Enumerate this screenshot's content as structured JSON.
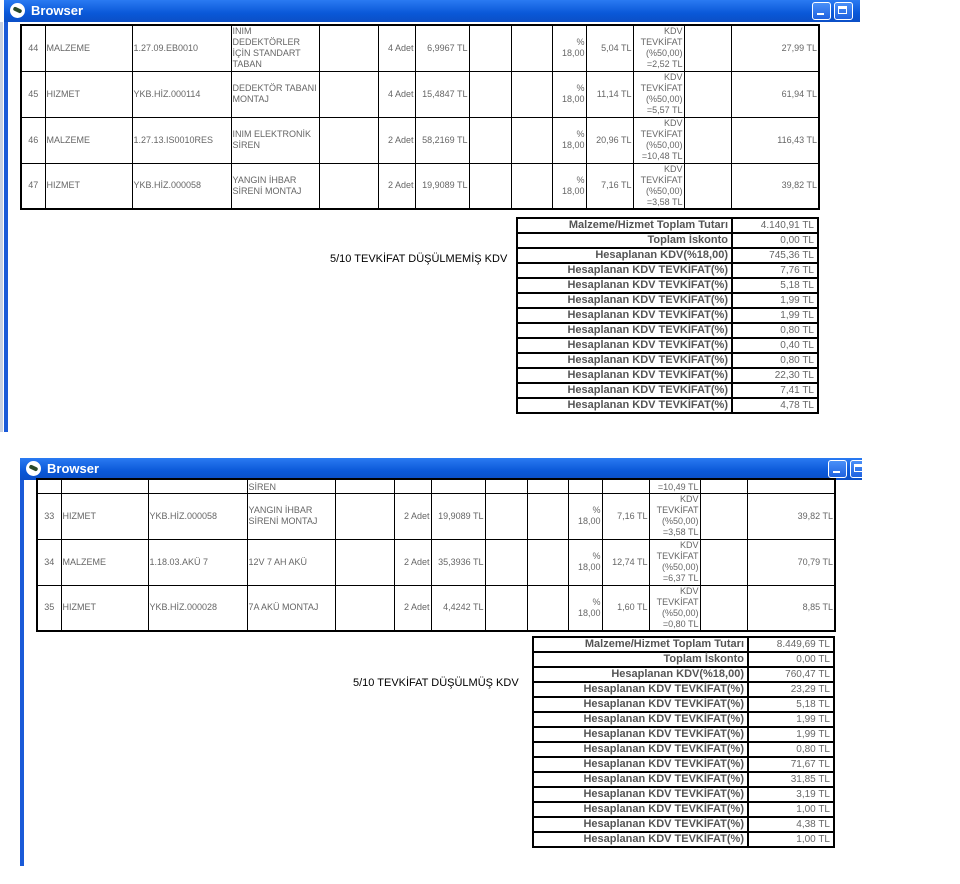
{
  "windows": [
    {
      "title": "Browser",
      "rows": [
        {
          "no": "44",
          "type": "MALZEME",
          "code": "1.27.09.EB0010",
          "desc": "INIM DEDEKTÖRLER İÇİN STANDART TABAN",
          "qty": "4 Adet",
          "price": "6,9967 TL",
          "kdv_rate": "% 18,00",
          "kdv": "5,04 TL",
          "tevkifat": "KDV TEVKİFAT (%50,00) =2,52 TL",
          "total": "27,99 TL"
        },
        {
          "no": "45",
          "type": "HIZMET",
          "code": "YKB.HİZ.000114",
          "desc": "DEDEKTÖR TABANI MONTAJ",
          "qty": "4 Adet",
          "price": "15,4847 TL",
          "kdv_rate": "% 18,00",
          "kdv": "11,14 TL",
          "tevkifat": "KDV TEVKİFAT (%50,00) =5,57 TL",
          "total": "61,94 TL"
        },
        {
          "no": "46",
          "type": "MALZEME",
          "code": "1.27.13.IS0010RES",
          "desc": "INIM ELEKTRONİK SİREN",
          "qty": "2 Adet",
          "price": "58,2169 TL",
          "kdv_rate": "% 18,00",
          "kdv": "20,96 TL",
          "tevkifat": "KDV TEVKİFAT (%50,00) =10,48 TL",
          "total": "116,43 TL"
        },
        {
          "no": "47",
          "type": "HIZMET",
          "code": "YKB.HİZ.000058",
          "desc": "YANGIN İHBAR SİRENİ MONTAJ",
          "qty": "2 Adet",
          "price": "19,9089 TL",
          "kdv_rate": "% 18,00",
          "kdv": "7,16 TL",
          "tevkifat": "KDV TEVKİFAT (%50,00) =3,58 TL",
          "total": "39,82 TL"
        }
      ],
      "note": "5/10 TEVKİFAT DÜŞÜLMEMİŞ KDV",
      "summary": [
        {
          "label": "Malzeme/Hizmet Toplam Tutarı",
          "value": "4.140,91 TL"
        },
        {
          "label": "Toplam İskonto",
          "value": "0,00 TL"
        },
        {
          "label": "Hesaplanan KDV(%18,00)",
          "value": "745,36 TL"
        },
        {
          "label": "Hesaplanan KDV TEVKİFAT(%)",
          "value": "7,76 TL"
        },
        {
          "label": "Hesaplanan KDV TEVKİFAT(%)",
          "value": "5,18 TL"
        },
        {
          "label": "Hesaplanan KDV TEVKİFAT(%)",
          "value": "1,99 TL"
        },
        {
          "label": "Hesaplanan KDV TEVKİFAT(%)",
          "value": "1,99 TL"
        },
        {
          "label": "Hesaplanan KDV TEVKİFAT(%)",
          "value": "0,80 TL"
        },
        {
          "label": "Hesaplanan KDV TEVKİFAT(%)",
          "value": "0,40 TL"
        },
        {
          "label": "Hesaplanan KDV TEVKİFAT(%)",
          "value": "0,80 TL"
        },
        {
          "label": "Hesaplanan KDV TEVKİFAT(%)",
          "value": "22,30 TL"
        },
        {
          "label": "Hesaplanan KDV TEVKİFAT(%)",
          "value": "7,41 TL"
        },
        {
          "label": "Hesaplanan KDV TEVKİFAT(%)",
          "value": "4,78 TL"
        }
      ]
    },
    {
      "title": "Browser",
      "partial_row": {
        "desc": "SİREN",
        "tevkifat": "=10,49 TL"
      },
      "rows": [
        {
          "no": "33",
          "type": "HIZMET",
          "code": "YKB.HİZ.000058",
          "desc": "YANGIN İHBAR SİRENİ MONTAJ",
          "qty": "2 Adet",
          "price": "19,9089 TL",
          "kdv_rate": "% 18,00",
          "kdv": "7,16 TL",
          "tevkifat": "KDV TEVKİFAT (%50,00) =3,58 TL",
          "total": "39,82 TL"
        },
        {
          "no": "34",
          "type": "MALZEME",
          "code": "1.18.03.AKÜ 7",
          "desc": "12V 7 AH AKÜ",
          "qty": "2 Adet",
          "price": "35,3936 TL",
          "kdv_rate": "% 18,00",
          "kdv": "12,74 TL",
          "tevkifat": "KDV TEVKİFAT (%50,00) =6,37 TL",
          "total": "70,79 TL"
        },
        {
          "no": "35",
          "type": "HIZMET",
          "code": "YKB.HİZ.000028",
          "desc": "7A AKÜ MONTAJ",
          "qty": "2 Adet",
          "price": "4,4242 TL",
          "kdv_rate": "% 18,00",
          "kdv": "1,60 TL",
          "tevkifat": "KDV TEVKİFAT (%50,00) =0,80 TL",
          "total": "8,85 TL"
        }
      ],
      "note": "5/10 TEVKİFAT DÜŞÜLMÜŞ KDV",
      "summary": [
        {
          "label": "Malzeme/Hizmet Toplam Tutarı",
          "value": "8.449,69 TL"
        },
        {
          "label": "Toplam İskonto",
          "value": "0,00 TL"
        },
        {
          "label": "Hesaplanan KDV(%18,00)",
          "value": "760,47 TL"
        },
        {
          "label": "Hesaplanan KDV TEVKİFAT(%)",
          "value": "23,29 TL"
        },
        {
          "label": "Hesaplanan KDV TEVKİFAT(%)",
          "value": "5,18 TL"
        },
        {
          "label": "Hesaplanan KDV TEVKİFAT(%)",
          "value": "1,99 TL"
        },
        {
          "label": "Hesaplanan KDV TEVKİFAT(%)",
          "value": "1,99 TL"
        },
        {
          "label": "Hesaplanan KDV TEVKİFAT(%)",
          "value": "0,80 TL"
        },
        {
          "label": "Hesaplanan KDV TEVKİFAT(%)",
          "value": "71,67 TL"
        },
        {
          "label": "Hesaplanan KDV TEVKİFAT(%)",
          "value": "31,85 TL"
        },
        {
          "label": "Hesaplanan KDV TEVKİFAT(%)",
          "value": "3,19 TL"
        },
        {
          "label": "Hesaplanan KDV TEVKİFAT(%)",
          "value": "1,00 TL"
        },
        {
          "label": "Hesaplanan KDV TEVKİFAT(%)",
          "value": "4,38 TL"
        },
        {
          "label": "Hesaplanan KDV TEVKİFAT(%)",
          "value": "1,00 TL"
        }
      ]
    }
  ]
}
